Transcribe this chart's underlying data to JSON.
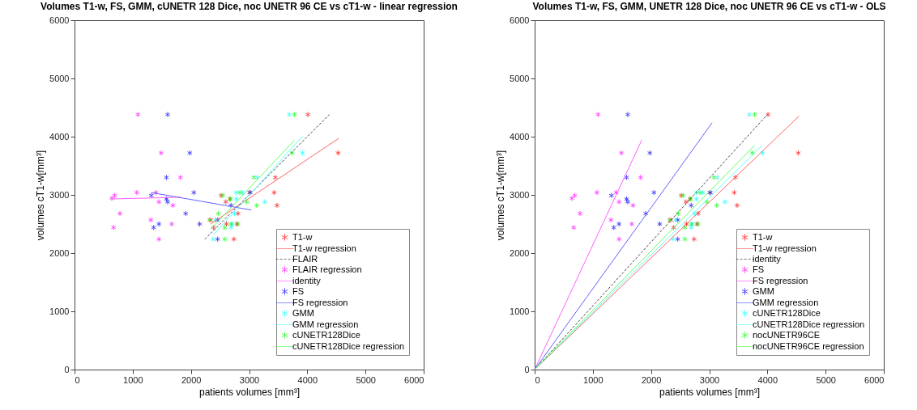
{
  "chart_data": [
    {
      "type": "scatter",
      "title": "Volumes T1-w, FS, GMM, cUNETR 128 Dice, noc UNETR 96 CE vs cT1-w - linear regression",
      "xlabel": "patients volumes [mm³]",
      "ylabel": "volumes cT1-w[mm³]",
      "xlim": [
        0,
        6000
      ],
      "ylim": [
        0,
        6000
      ],
      "xticks": [
        0,
        1000,
        2000,
        3000,
        4000,
        5000,
        6000
      ],
      "yticks": [
        0,
        1000,
        2000,
        3000,
        4000,
        5000,
        6000
      ],
      "grid": false,
      "legend": "bottom right",
      "series": [
        {
          "name": "T1-w",
          "marker": "cross",
          "color": "#ff0000",
          "x": [
            4010,
            4530,
            3450,
            3430,
            3010,
            2520,
            2670,
            2600,
            3480,
            2810,
            2340,
            2610,
            2790,
            2390,
            2740
          ],
          "values": [
            4380,
            3720,
            3300,
            3040,
            3040,
            2990,
            2930,
            2880,
            2820,
            2680,
            2570,
            2500,
            2500,
            2440,
            2240
          ]
        },
        {
          "name": "T1-w regression",
          "type": "line",
          "color": "#ff6060",
          "x": [
            2340,
            4540
          ],
          "values": [
            2500,
            3970
          ]
        },
        {
          "name": "FLAIR",
          "type": "line",
          "color": "#404040",
          "line_style": "dashed",
          "x": [
            2240,
            4380
          ],
          "values": [
            2240,
            4380
          ]
        },
        {
          "name": "FLAIR regression",
          "marker": "cross",
          "color": "#ff00ff",
          "x": [
            1090,
            1490,
            1820,
            1070,
            1400,
            690,
            640,
            1450,
            1690,
            780,
            1310,
            1670,
            670,
            1450
          ],
          "values": [
            4380,
            3720,
            3300,
            3040,
            3040,
            2990,
            2940,
            2880,
            2820,
            2680,
            2570,
            2500,
            2440,
            2240
          ]
        },
        {
          "name": "identity",
          "type": "line",
          "color": "#ff60ff",
          "x": [
            640,
            1830
          ],
          "values": [
            2930,
            2960
          ]
        },
        {
          "name": "FS",
          "marker": "cross",
          "color": "#0000ff",
          "x": [
            1600,
            1980,
            1580,
            2050,
            3020,
            1320,
            1580,
            1600,
            2690,
            1910,
            2460,
            2150,
            1450,
            1360,
            2460
          ],
          "values": [
            4380,
            3720,
            3300,
            3040,
            3040,
            2990,
            2930,
            2880,
            2820,
            2680,
            2570,
            2500,
            2500,
            2440,
            2240
          ]
        },
        {
          "name": "FS regression",
          "type": "line",
          "color": "#6060ff",
          "x": [
            1320,
            3040
          ],
          "values": [
            3040,
            2740
          ]
        },
        {
          "name": "GMM",
          "marker": "cross",
          "color": "#00ffff",
          "x": [
            3690,
            3920,
            3140,
            2780,
            2890,
            2780,
            3270,
            2750,
            2420,
            2710,
            2690,
            2380
          ],
          "values": [
            4380,
            3720,
            3300,
            3040,
            3040,
            2930,
            2880,
            2680,
            2570,
            2500,
            2440,
            2240
          ]
        },
        {
          "name": "GMM regression",
          "type": "line",
          "color": "#60ffff",
          "x": [
            2390,
            3920
          ],
          "values": [
            2320,
            4010
          ]
        },
        {
          "name": "cUNETR128Dice",
          "marker": "cross",
          "color": "#00ff00",
          "x": [
            3780,
            3740,
            3080,
            2840,
            2550,
            2680,
            2960,
            3130,
            2470,
            2320,
            2690,
            2810,
            2580,
            2580
          ],
          "values": [
            4380,
            3720,
            3300,
            3040,
            2990,
            2930,
            2880,
            2820,
            2680,
            2570,
            2500,
            2500,
            2440,
            2240
          ]
        },
        {
          "name": "cUNETR128Dice regression",
          "type": "line",
          "color": "#60ff60",
          "x": [
            2340,
            3780
          ],
          "values": [
            2410,
            3940
          ]
        }
      ]
    },
    {
      "type": "scatter",
      "title": "Volumes T1-w, FS, GMM, UNETR 128 Dice, noc UNETR 96 CE vs cT1-w - OLS",
      "xlabel": "patients volumes [mm³]",
      "ylabel": "volumes cT1-w[mm³]",
      "xlim": [
        0,
        6000
      ],
      "ylim": [
        0,
        6000
      ],
      "xticks": [
        0,
        1000,
        2000,
        3000,
        4000,
        5000,
        6000
      ],
      "yticks": [
        0,
        1000,
        2000,
        3000,
        4000,
        5000,
        6000
      ],
      "grid": false,
      "legend": "bottom right",
      "series": [
        {
          "name": "T1-w",
          "marker": "cross",
          "color": "#ff0000",
          "x": [
            4010,
            4530,
            3450,
            3430,
            3010,
            2520,
            2670,
            2600,
            3480,
            2810,
            2340,
            2610,
            2790,
            2390,
            2740
          ],
          "values": [
            4380,
            3720,
            3300,
            3040,
            3040,
            2990,
            2930,
            2880,
            2820,
            2680,
            2570,
            2500,
            2500,
            2440,
            2240
          ]
        },
        {
          "name": "T1-w regression",
          "type": "line",
          "color": "#ff6060",
          "x": [
            0,
            4540
          ],
          "values": [
            0,
            4350
          ]
        },
        {
          "name": "identity",
          "type": "line",
          "color": "#404040",
          "line_style": "dashed",
          "x": [
            0,
            4000
          ],
          "values": [
            0,
            4380
          ]
        },
        {
          "name": "FS",
          "marker": "cross",
          "color": "#ff00ff",
          "x": [
            1090,
            1490,
            1820,
            1070,
            1400,
            690,
            640,
            1450,
            1690,
            780,
            1310,
            1670,
            670,
            1450
          ],
          "values": [
            4380,
            3720,
            3300,
            3040,
            3040,
            2990,
            2940,
            2880,
            2820,
            2680,
            2570,
            2500,
            2440,
            2240
          ]
        },
        {
          "name": "FS regression",
          "type": "line",
          "color": "#ff60ff",
          "x": [
            0,
            1840
          ],
          "values": [
            0,
            3940
          ]
        },
        {
          "name": "GMM",
          "marker": "cross",
          "color": "#0000ff",
          "x": [
            1600,
            1980,
            1580,
            2050,
            3020,
            1320,
            1580,
            1600,
            2690,
            1910,
            2460,
            2150,
            1450,
            1360,
            2460
          ],
          "values": [
            4380,
            3720,
            3300,
            3040,
            3040,
            2990,
            2930,
            2880,
            2820,
            2680,
            2570,
            2500,
            2500,
            2440,
            2240
          ]
        },
        {
          "name": "GMM regression",
          "type": "line",
          "color": "#6060ff",
          "x": [
            0,
            3050
          ],
          "values": [
            0,
            4240
          ]
        },
        {
          "name": "cUNETR128Dice",
          "marker": "cross",
          "color": "#00ffff",
          "x": [
            3690,
            3920,
            3140,
            2780,
            2890,
            2780,
            3270,
            2750,
            2420,
            2710,
            2690,
            2380
          ],
          "values": [
            4380,
            3720,
            3300,
            3040,
            3040,
            2930,
            2880,
            2680,
            2570,
            2500,
            2440,
            2240
          ]
        },
        {
          "name": "cUNETR128Dice regression",
          "type": "line",
          "color": "#60ffff",
          "x": [
            0,
            3900
          ],
          "values": [
            0,
            3840
          ]
        },
        {
          "name": "nocUNETR96CE",
          "marker": "cross",
          "color": "#00ff00",
          "x": [
            3780,
            3740,
            3080,
            2840,
            2550,
            2680,
            2960,
            3130,
            2470,
            2320,
            2690,
            2810,
            2580,
            2580
          ],
          "values": [
            4380,
            3720,
            3300,
            3040,
            2990,
            2930,
            2880,
            2820,
            2680,
            2570,
            2500,
            2500,
            2440,
            2240
          ]
        },
        {
          "name": "nocUNETR96CE regression",
          "type": "line",
          "color": "#60ff60",
          "x": [
            0,
            3780
          ],
          "values": [
            0,
            3850
          ]
        }
      ]
    }
  ]
}
